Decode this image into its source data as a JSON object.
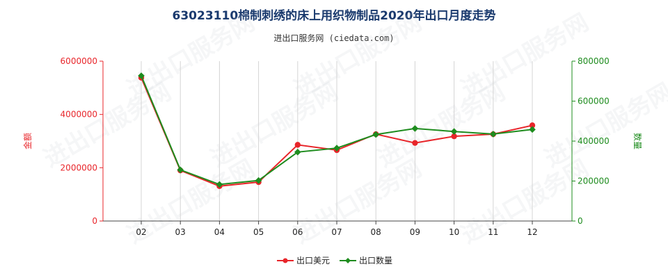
{
  "page": {
    "title": "63023110棉制刺绣的床上用织物制品2020年出口月度走势",
    "subtitle": "进出口服务网 (ciedata.com)",
    "watermark": "进出口服务网"
  },
  "chart_data": {
    "type": "line",
    "title": "63023110棉制刺绣的床上用织物制品2020年出口月度走势",
    "subtitle": "进出口服务网 (ciedata.com)",
    "categories": [
      "02",
      "03",
      "04",
      "05",
      "06",
      "07",
      "08",
      "09",
      "10",
      "11",
      "12"
    ],
    "y_left": {
      "label": "金额",
      "range": [
        0,
        6000000
      ],
      "ticks": [
        0,
        2000000,
        4000000,
        6000000
      ],
      "tick_labels": [
        "0",
        "2000000",
        "4000000",
        "6000000"
      ],
      "color": "#e8252a"
    },
    "y_right": {
      "label": "数量",
      "range": [
        0,
        800000
      ],
      "ticks": [
        0,
        200000,
        400000,
        600000,
        800000
      ],
      "tick_labels": [
        "0",
        "200000",
        "400000",
        "600000",
        "800000"
      ],
      "color": "#1e8c1e"
    },
    "series": [
      {
        "name": "出口美元",
        "axis": "left",
        "color": "#e8252a",
        "values": [
          5380000,
          1900000,
          1310000,
          1460000,
          2860000,
          2660000,
          3260000,
          2930000,
          3180000,
          3260000,
          3590000
        ]
      },
      {
        "name": "出口数量",
        "axis": "right",
        "color": "#1e8c1e",
        "values": [
          727000,
          256000,
          183000,
          203000,
          345000,
          365000,
          433000,
          463000,
          448000,
          435000,
          458000
        ]
      }
    ],
    "grid": "vertical",
    "legend_position": "bottom-center"
  }
}
